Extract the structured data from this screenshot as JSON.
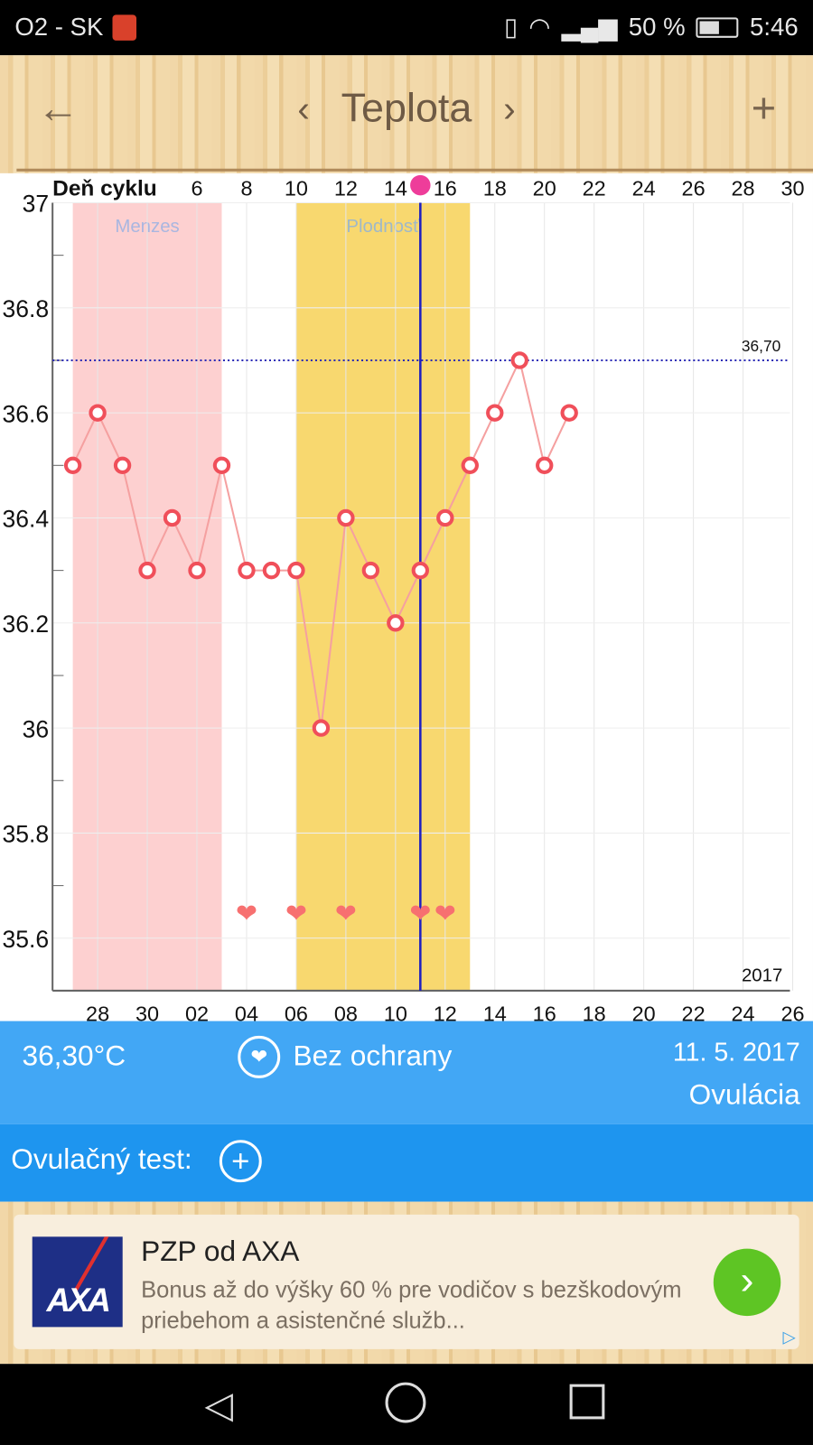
{
  "status_bar": {
    "carrier": "O2 - SK",
    "battery": "50 %",
    "time": "5:46"
  },
  "header": {
    "title": "Teplota",
    "back_icon": "arrow-left-icon",
    "prev_icon": "chevron-left-icon",
    "next_icon": "chevron-right-icon",
    "add_icon": "plus-icon"
  },
  "chart_data": {
    "type": "line",
    "title": "Teplota",
    "top_axis_label": "Deň cyklu",
    "top_ticks": [
      "6",
      "8",
      "10",
      "12",
      "14",
      "16",
      "18",
      "20",
      "22",
      "24",
      "26",
      "28",
      "30"
    ],
    "bottom_ticks": [
      "28",
      "30",
      "02",
      "04",
      "06",
      "08",
      "10",
      "12",
      "14",
      "16",
      "18",
      "20",
      "22",
      "24",
      "26"
    ],
    "year": "2017",
    "y_ticks": [
      "37",
      "36.8",
      "36.6",
      "36.4",
      "36.2",
      "36",
      "35.8",
      "35.6"
    ],
    "ylim": [
      35.5,
      37.0
    ],
    "xlim": [
      1,
      30
    ],
    "series": [
      {
        "name": "Teplota",
        "x": [
          1,
          2,
          3,
          4,
          5,
          6,
          7,
          8,
          9,
          10,
          11,
          12,
          13,
          14,
          15,
          16,
          17,
          18,
          19,
          20,
          21
        ],
        "values": [
          36.5,
          36.6,
          36.5,
          36.3,
          36.4,
          36.3,
          36.5,
          36.3,
          36.3,
          36.3,
          36.0,
          36.4,
          36.3,
          36.2,
          36.3,
          36.4,
          36.5,
          36.6,
          36.7,
          36.5,
          36.6
        ]
      }
    ],
    "bands": [
      {
        "label": "Menzes",
        "from": 1,
        "to": 7,
        "color": "#fdd0d0"
      },
      {
        "label": "Plodnosť",
        "from": 10,
        "to": 17,
        "color": "#f8d86f"
      }
    ],
    "threshold": {
      "value": 36.7,
      "label": "36,70"
    },
    "ovulation_day": 15,
    "intercourse_days": [
      8,
      10,
      12,
      15,
      16
    ]
  },
  "info": {
    "temperature": "36,30°C",
    "protection": "Bez ochrany",
    "date": "11. 5. 2017",
    "phase": "Ovulácia"
  },
  "ovulation_test": {
    "label": "Ovulačný test:"
  },
  "ad": {
    "logo": "AXA",
    "title": "PZP od AXA",
    "text": "Bonus až do výšky 60 % pre vodičov s bezškodovým priebehom a asistenčné služb..."
  }
}
